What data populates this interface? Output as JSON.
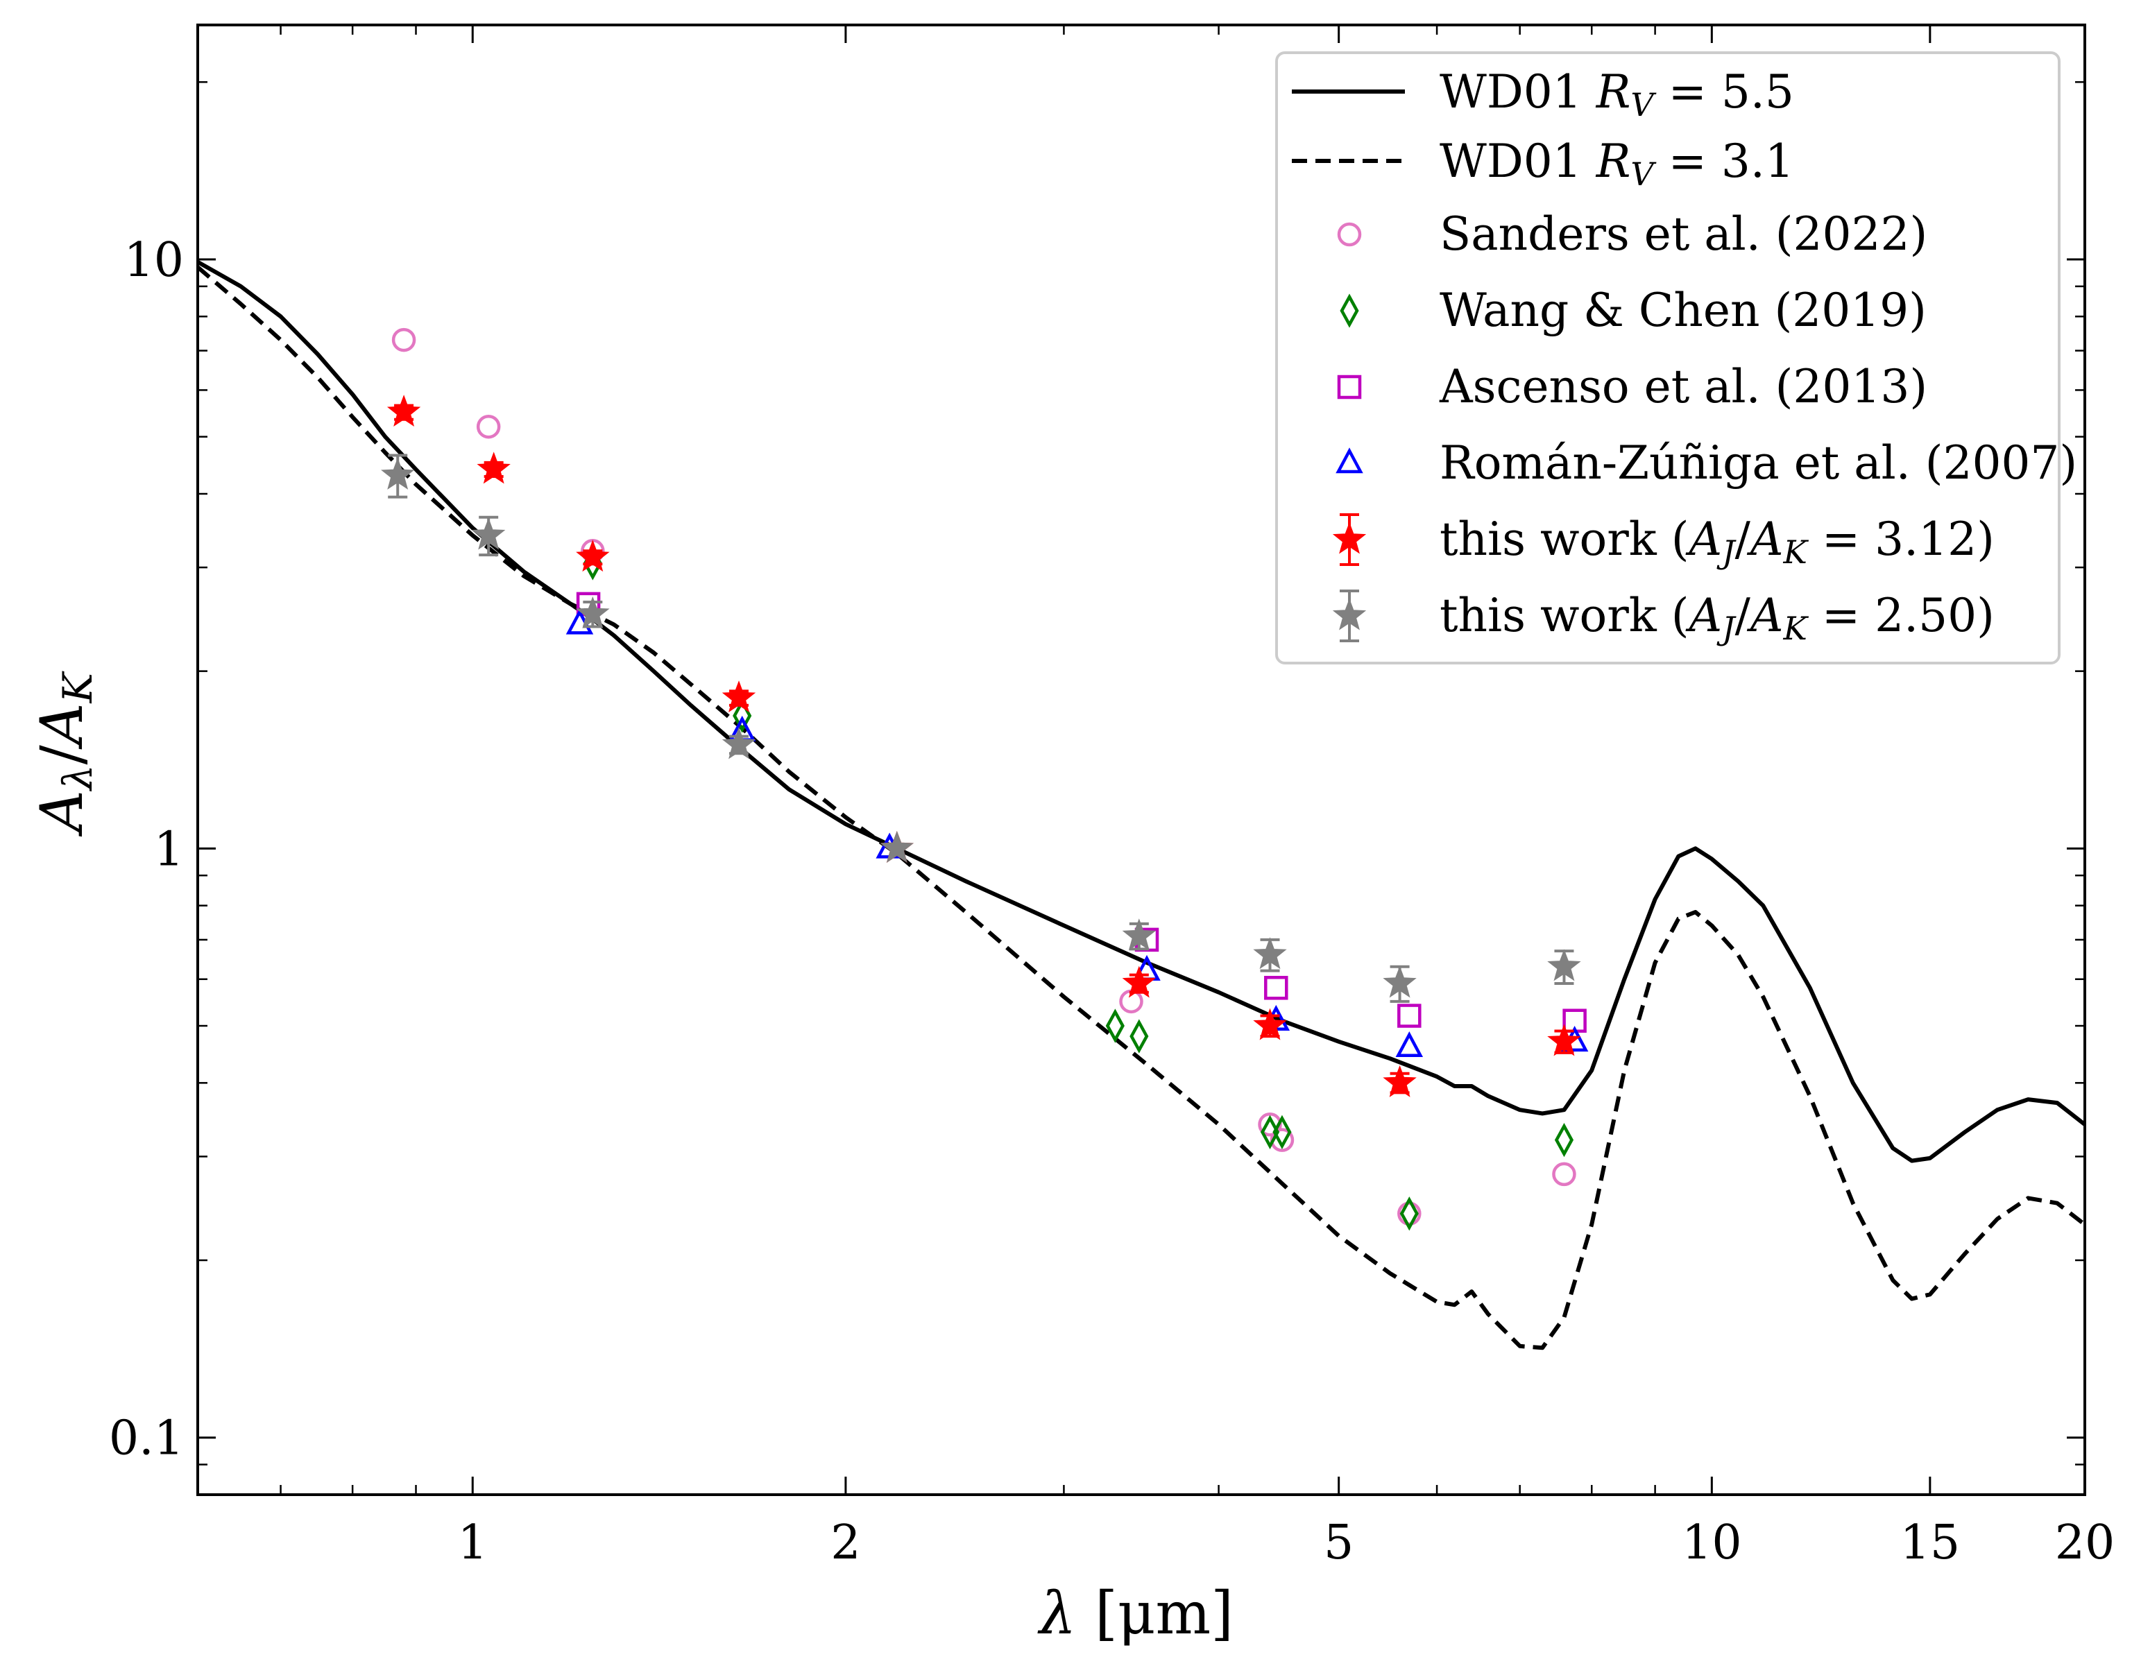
{
  "chart_data": {
    "type": "scatter",
    "title": "",
    "xlabel": "λ [μm]",
    "ylabel": "Aλ/AK",
    "xscale": "log",
    "yscale": "log",
    "xlim": [
      0.6,
      20
    ],
    "ylim": [
      0.08,
      25
    ],
    "xticks": [
      {
        "value": 1,
        "label": "1"
      },
      {
        "value": 2,
        "label": "2"
      },
      {
        "value": 5,
        "label": "5"
      },
      {
        "value": 10,
        "label": "10"
      },
      {
        "value": 15,
        "label": "15"
      },
      {
        "value": 20,
        "label": "20"
      }
    ],
    "yticks": [
      {
        "value": 0.1,
        "label": "0.1"
      },
      {
        "value": 1,
        "label": "1"
      },
      {
        "value": 10,
        "label": "10"
      }
    ],
    "legend_position": "top-right",
    "lines": [
      {
        "name": "WD01 R_V = 5.5",
        "label": "WD01 RV = 5.5",
        "style": "solid",
        "color": "#000000",
        "x": [
          0.6,
          0.65,
          0.7,
          0.75,
          0.8,
          0.85,
          0.9,
          1.0,
          1.1,
          1.2,
          1.25,
          1.3,
          1.4,
          1.5,
          1.65,
          1.8,
          2.0,
          2.2,
          2.5,
          3.0,
          3.5,
          4.0,
          4.5,
          5.0,
          5.5,
          6.0,
          6.2,
          6.4,
          6.6,
          7.0,
          7.3,
          7.6,
          8.0,
          8.5,
          9.0,
          9.4,
          9.7,
          10.0,
          10.5,
          11.0,
          12.0,
          13.0,
          14.0,
          14.5,
          15.0,
          16.0,
          17.0,
          18.0,
          19.0,
          20.0
        ],
        "y": [
          9.9,
          9.0,
          8.0,
          6.9,
          5.9,
          5.0,
          4.4,
          3.5,
          2.95,
          2.6,
          2.45,
          2.3,
          2.0,
          1.75,
          1.47,
          1.26,
          1.1,
          1.0,
          0.88,
          0.74,
          0.64,
          0.57,
          0.51,
          0.47,
          0.44,
          0.41,
          0.395,
          0.395,
          0.38,
          0.36,
          0.355,
          0.36,
          0.42,
          0.6,
          0.82,
          0.97,
          1.0,
          0.96,
          0.88,
          0.8,
          0.58,
          0.4,
          0.31,
          0.295,
          0.298,
          0.33,
          0.36,
          0.375,
          0.37,
          0.34
        ]
      },
      {
        "name": "WD01 R_V = 3.1",
        "label": "WD01 RV = 3.1",
        "style": "dashed",
        "color": "#000000",
        "x": [
          0.6,
          0.65,
          0.7,
          0.75,
          0.8,
          0.85,
          0.9,
          1.0,
          1.1,
          1.2,
          1.25,
          1.3,
          1.4,
          1.5,
          1.65,
          1.8,
          2.0,
          2.2,
          2.5,
          3.0,
          3.5,
          4.0,
          4.5,
          5.0,
          5.5,
          6.0,
          6.2,
          6.4,
          6.6,
          7.0,
          7.3,
          7.6,
          8.0,
          8.5,
          9.0,
          9.4,
          9.7,
          10.0,
          10.5,
          11.0,
          12.0,
          13.0,
          14.0,
          14.5,
          15.0,
          16.0,
          17.0,
          18.0,
          19.0,
          20.0
        ],
        "y": [
          9.7,
          8.4,
          7.3,
          6.3,
          5.4,
          4.7,
          4.15,
          3.4,
          2.9,
          2.6,
          2.5,
          2.4,
          2.15,
          1.9,
          1.6,
          1.35,
          1.13,
          0.98,
          0.78,
          0.56,
          0.43,
          0.34,
          0.27,
          0.22,
          0.19,
          0.17,
          0.168,
          0.177,
          0.162,
          0.143,
          0.142,
          0.16,
          0.23,
          0.42,
          0.64,
          0.76,
          0.78,
          0.74,
          0.66,
          0.56,
          0.38,
          0.25,
          0.185,
          0.172,
          0.175,
          0.205,
          0.235,
          0.255,
          0.25,
          0.23
        ]
      }
    ],
    "series": [
      {
        "name": "Sanders et al. (2022)",
        "marker": "circle",
        "color": "#e377c2",
        "filled": false,
        "x": [
          0.88,
          1.03,
          1.25,
          3.4,
          4.4,
          4.5,
          5.7,
          7.6
        ],
        "y": [
          7.3,
          5.2,
          3.2,
          0.55,
          0.34,
          0.32,
          0.24,
          0.28
        ]
      },
      {
        "name": "Wang & Chen (2019)",
        "marker": "diamond",
        "color": "#008000",
        "filled": false,
        "x": [
          1.25,
          1.65,
          3.3,
          3.45,
          4.4,
          4.5,
          5.7,
          7.6
        ],
        "y": [
          3.05,
          1.68,
          0.5,
          0.48,
          0.33,
          0.33,
          0.24,
          0.32
        ]
      },
      {
        "name": "Ascenso et al. (2013)",
        "marker": "square",
        "color": "#bf00bf",
        "filled": false,
        "x": [
          1.24,
          3.5,
          4.45,
          5.7,
          7.75
        ],
        "y": [
          2.6,
          0.7,
          0.58,
          0.52,
          0.51
        ]
      },
      {
        "name": "Román-Zúñiga et al. (2007)",
        "marker": "triangle",
        "color": "#0000ff",
        "filled": false,
        "x": [
          1.22,
          1.65,
          2.17,
          3.5,
          4.45,
          5.7,
          7.75
        ],
        "y": [
          2.4,
          1.58,
          1.0,
          0.62,
          0.51,
          0.46,
          0.47
        ]
      },
      {
        "name": "this work (AJ/AK = 3.12)",
        "marker": "star",
        "color": "#ff0000",
        "filled": true,
        "x": [
          0.88,
          1.04,
          1.25,
          1.64,
          2.2,
          3.45,
          4.4,
          5.6,
          7.6
        ],
        "y": [
          5.5,
          4.4,
          3.12,
          1.8,
          1.0,
          0.59,
          0.5,
          0.4,
          0.47
        ],
        "yerr": [
          0.15,
          0.12,
          0.08,
          0.05,
          0.0,
          0.02,
          0.02,
          0.015,
          0.02
        ]
      },
      {
        "name": "this work (AJ/AK = 2.50)",
        "marker": "star",
        "color": "#808080",
        "filled": true,
        "x": [
          0.87,
          1.03,
          1.25,
          1.64,
          2.2,
          3.45,
          4.4,
          5.6,
          7.6
        ],
        "y": [
          4.3,
          3.4,
          2.5,
          1.5,
          1.0,
          0.71,
          0.66,
          0.59,
          0.63
        ],
        "yerr": [
          0.35,
          0.25,
          0.12,
          0.05,
          0.0,
          0.035,
          0.04,
          0.04,
          0.04
        ]
      }
    ]
  },
  "legend": {
    "entries": [
      {
        "main": "WD01 ",
        "var": "R",
        "sub": "V",
        "rest": " = 5.5"
      },
      {
        "main": "WD01 ",
        "var": "R",
        "sub": "V",
        "rest": " = 3.1"
      },
      {
        "main": "Sanders et al. (2022)"
      },
      {
        "main": "Wang & Chen (2019)"
      },
      {
        "main": "Ascenso et al. (2013)"
      },
      {
        "main": "Román-Zúñiga et al. (2007)"
      },
      {
        "main": "this work (",
        "var": "A",
        "sub": "J",
        "mid": "/",
        "var2": "A",
        "sub2": "K",
        "rest": " = 3.12)"
      },
      {
        "main": "this work (",
        "var": "A",
        "sub": "J",
        "mid": "/",
        "var2": "A",
        "sub2": "K",
        "rest": " = 2.50)"
      }
    ]
  },
  "axes": {
    "xlabel_main": "λ",
    "xlabel_unit": " [μm]",
    "ylabel_num": "A",
    "ylabel_num_sub": "λ",
    "ylabel_den": "A",
    "ylabel_den_sub": "K"
  }
}
